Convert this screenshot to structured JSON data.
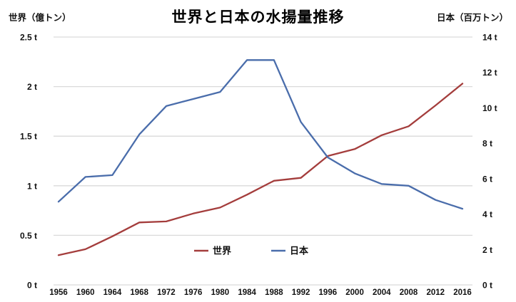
{
  "chart": {
    "title": "世界と日本の水揚量推移",
    "left_axis_header": "世界（億トン）",
    "right_axis_header": "日本（百万トン）"
  },
  "colors": {
    "world_line": "#a43d3c",
    "japan_line": "#4a6dab",
    "gridline": "#d9d9d9",
    "text": "#111111",
    "background": "#ffffff"
  },
  "chart_data": {
    "type": "line",
    "title": "世界と日本の水揚量推移",
    "x": [
      1956,
      1960,
      1964,
      1968,
      1972,
      1976,
      1980,
      1984,
      1988,
      1992,
      1996,
      2000,
      2004,
      2008,
      2012,
      2016
    ],
    "series": [
      {
        "name": "世界",
        "axis": "left",
        "unit": "億トン",
        "color": "#a43d3c",
        "values": [
          0.3,
          0.36,
          0.49,
          0.63,
          0.64,
          0.72,
          0.78,
          0.91,
          1.05,
          1.08,
          1.3,
          1.37,
          1.51,
          1.6,
          1.81,
          2.03
        ]
      },
      {
        "name": "日本",
        "axis": "right",
        "unit": "百万トン",
        "color": "#4a6dab",
        "values": [
          4.7,
          6.1,
          6.2,
          8.5,
          10.1,
          10.5,
          10.9,
          12.7,
          12.7,
          9.2,
          7.2,
          6.3,
          5.7,
          5.6,
          4.8,
          4.3
        ]
      }
    ],
    "left_axis": {
      "label": "世界（億トン）",
      "range": [
        0,
        2.5
      ],
      "tick_values": [
        0,
        0.5,
        1,
        1.5,
        2,
        2.5
      ],
      "tick_labels": [
        "0 t",
        "0.5 t",
        "1 t",
        "1.5 t",
        "2 t",
        "2.5 t"
      ]
    },
    "right_axis": {
      "label": "日本（百万トン）",
      "range": [
        0,
        14
      ],
      "tick_values": [
        0,
        2,
        4,
        6,
        8,
        10,
        12,
        14
      ],
      "tick_labels": [
        "0 t",
        "2 t",
        "4 t",
        "6 t",
        "8 t",
        "10 t",
        "12 t",
        "14 t"
      ]
    },
    "grid": "horizontal gridlines at left-axis ticks only",
    "legend": {
      "position": "inside bottom center",
      "entries": [
        {
          "label": "世界",
          "color": "#a43d3c"
        },
        {
          "label": "日本",
          "color": "#4a6dab"
        }
      ]
    }
  }
}
